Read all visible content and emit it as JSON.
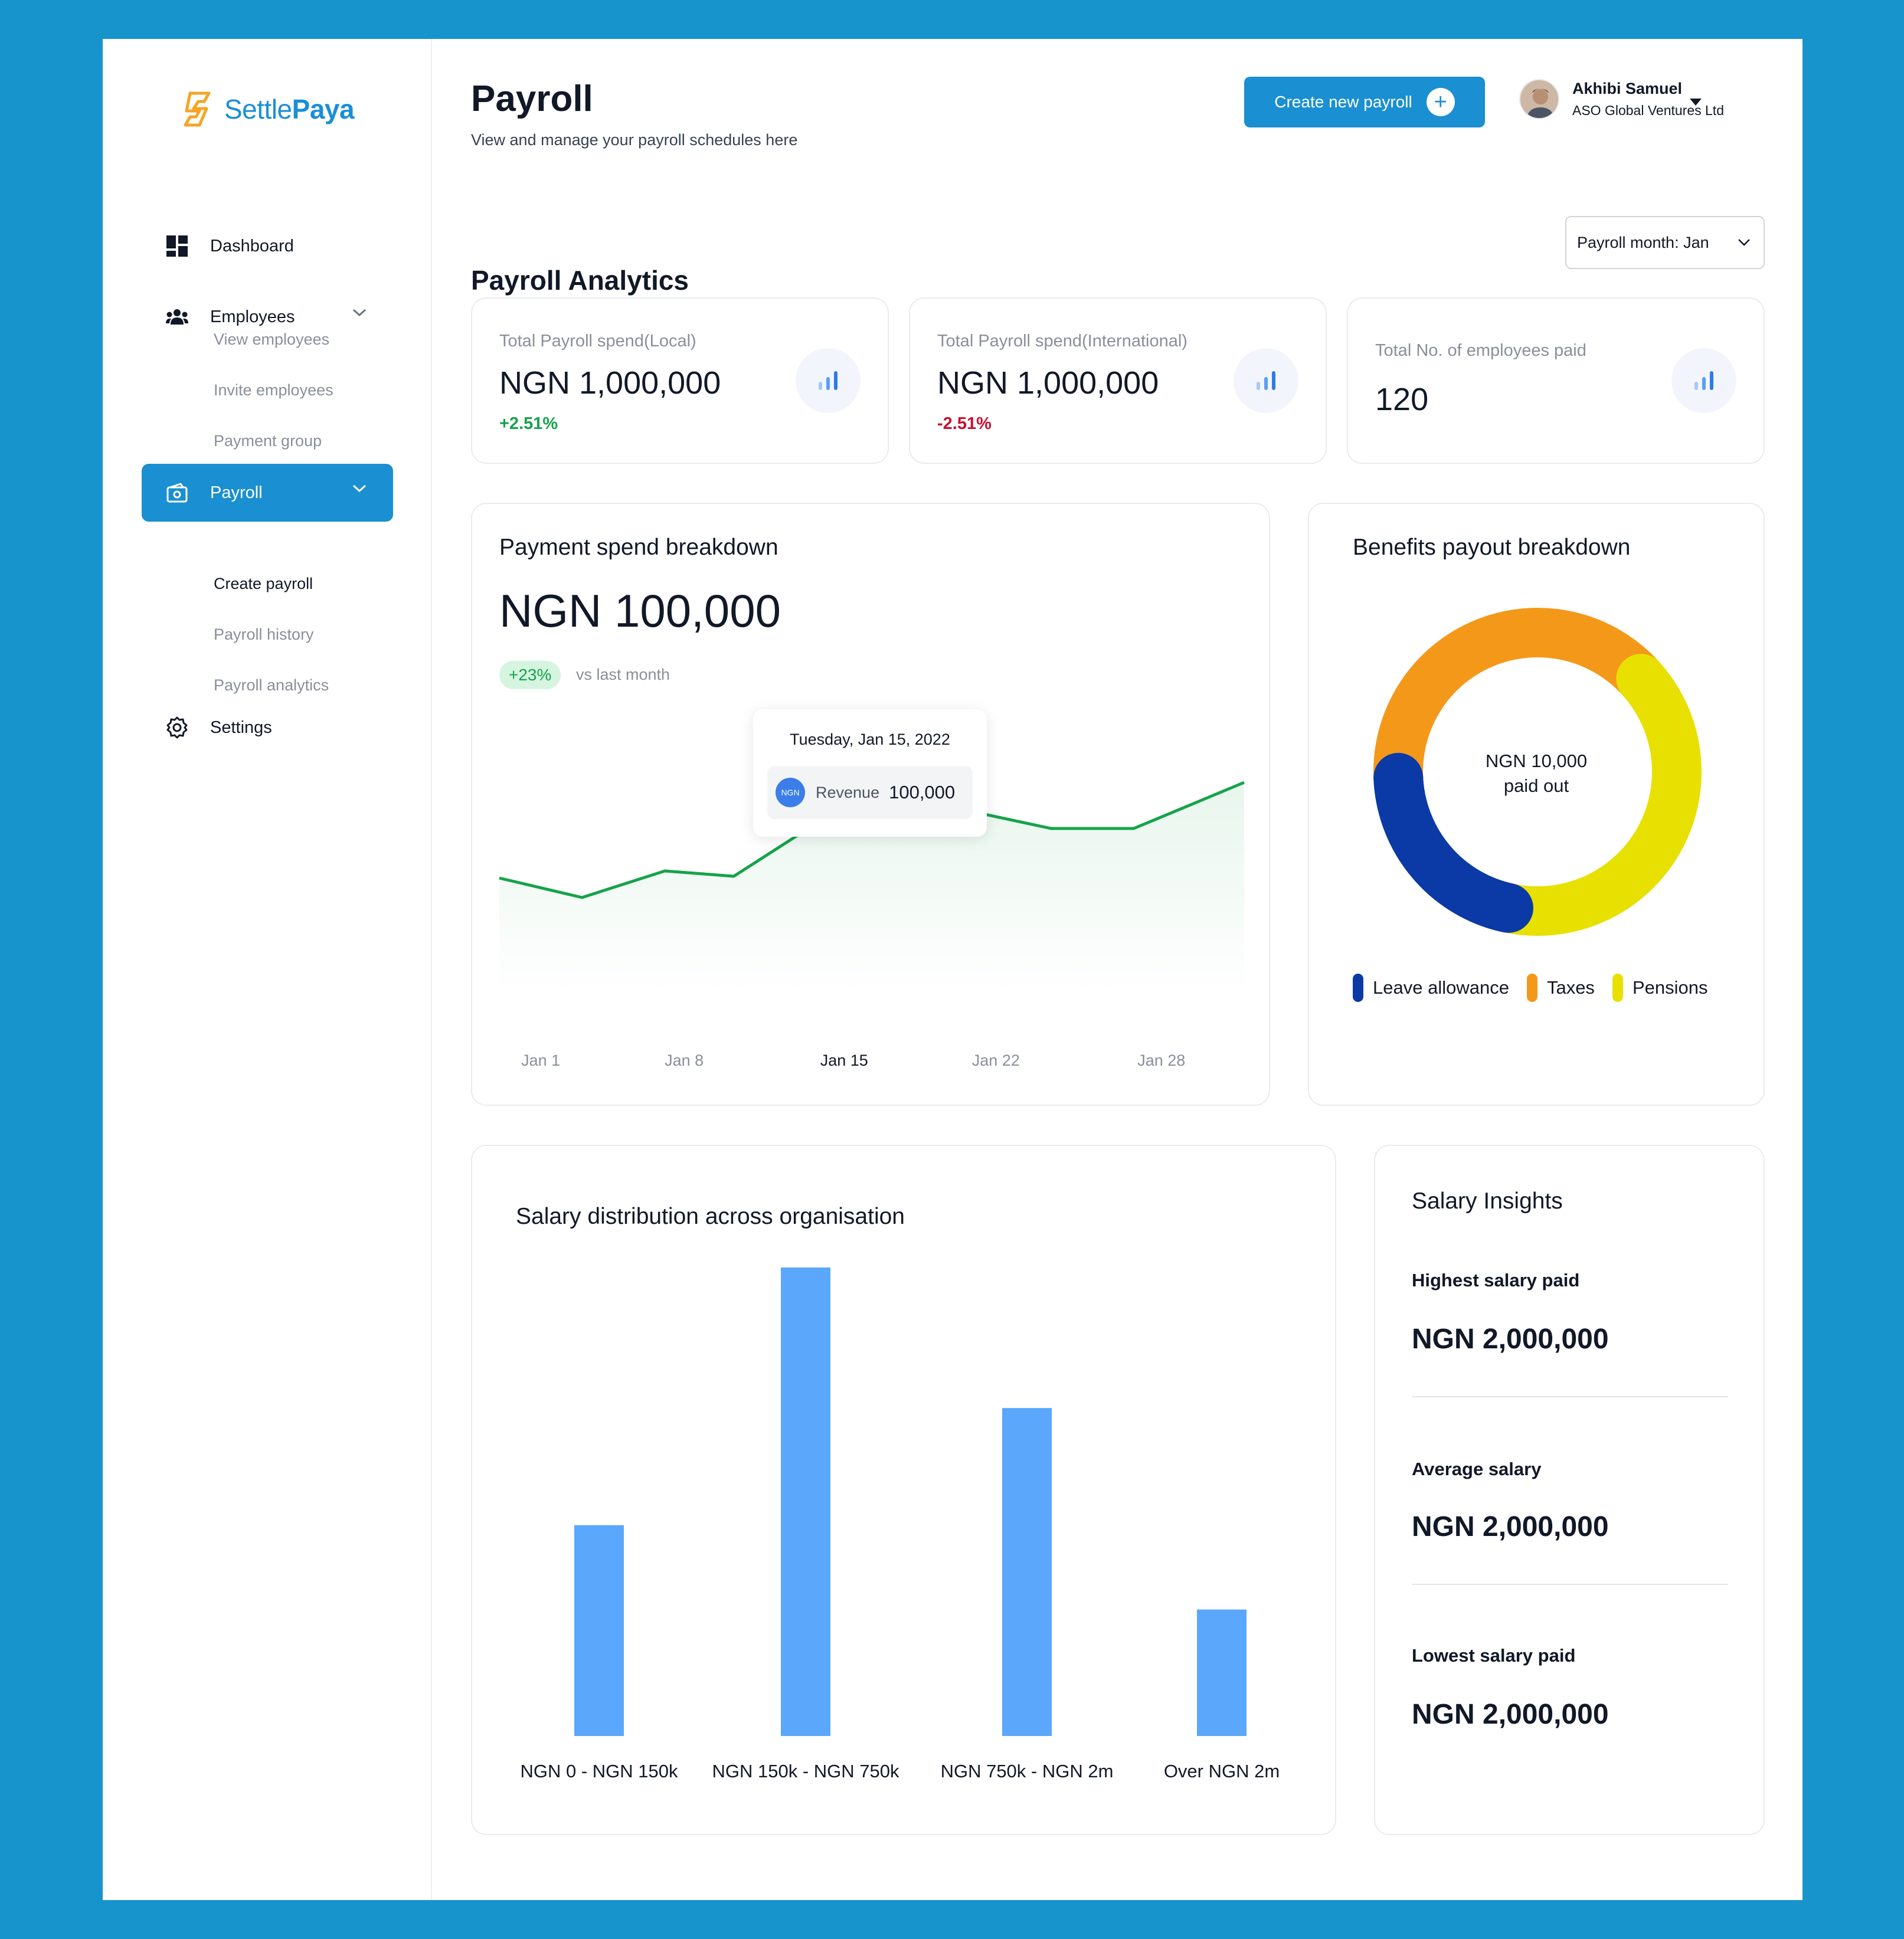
{
  "brand": {
    "name_light": "Settle",
    "name_bold": "Paya",
    "accent": "#1a8fd8",
    "logo_color": "#f5a524"
  },
  "sidebar": {
    "items": [
      {
        "label": "Dashboard",
        "icon": "dashboard-icon"
      },
      {
        "label": "Employees",
        "icon": "people-icon"
      },
      {
        "label": "Payroll",
        "icon": "wallet-icon"
      },
      {
        "label": "Settings",
        "icon": "gear-icon"
      }
    ],
    "employees_sub": [
      "View employees",
      "Invite employees",
      "Payment group"
    ],
    "payroll_sub": [
      "Create payroll",
      "Payroll history",
      "Payroll analytics"
    ]
  },
  "header": {
    "title": "Payroll",
    "subtitle": "View and manage your payroll schedules here",
    "create_button": "Create new payroll",
    "user_name": "Akhibi Samuel",
    "user_org": "ASO Global Ventures Ltd"
  },
  "analytics": {
    "title": "Payroll Analytics",
    "month_select": "Payroll month: Jan",
    "stats": [
      {
        "label": "Total Payroll spend(Local)",
        "value": "NGN 1,000,000",
        "delta": "+2.51%",
        "delta_color": "#16a34a"
      },
      {
        "label": "Total Payroll spend(International)",
        "value": "NGN 1,000,000",
        "delta": "-2.51%",
        "delta_color": "#c8102e"
      },
      {
        "label": "Total No. of employees paid",
        "value": "120",
        "delta": ""
      }
    ]
  },
  "payment_breakdown": {
    "title": "Payment spend breakdown",
    "total": "NGN 100,000",
    "change": "+23%",
    "change_note": "vs last month",
    "tooltip": {
      "date": "Tuesday, Jan 15, 2022",
      "currency_badge": "NGN",
      "label": "Revenue",
      "value": "100,000"
    }
  },
  "benefits": {
    "title": "Benefits payout breakdown",
    "center_line1": "NGN 10,000",
    "center_line2": "paid out"
  },
  "salary_distribution": {
    "title": "Salary distribution across organisation"
  },
  "insights": {
    "title": "Salary Insights",
    "items": [
      {
        "label": "Highest salary paid",
        "value": "NGN 2,000,000"
      },
      {
        "label": "Average salary",
        "value": "NGN 2,000,000"
      },
      {
        "label": "Lowest salary paid",
        "value": "NGN 2,000,000"
      }
    ]
  },
  "chart_data": [
    {
      "type": "line",
      "title": "Payment spend breakdown",
      "x_ticks": [
        "Jan 1",
        "Jan 8",
        "Jan 15",
        "Jan 22",
        "Jan 28"
      ],
      "active_tick": "Jan 15",
      "series": [
        {
          "color": "#16a34a",
          "values": [
            62,
            51,
            66,
            63,
            88,
            115,
            100,
            90,
            90,
            116
          ]
        }
      ],
      "x": [
        1,
        4,
        7,
        9.5,
        12,
        15,
        18,
        21,
        24,
        28
      ],
      "highlight": {
        "x": 15,
        "label": "Revenue",
        "value": "100,000"
      },
      "ylim": [
        0,
        140
      ],
      "grid": false
    },
    {
      "type": "pie",
      "title": "Benefits payout breakdown",
      "donut": true,
      "slices": [
        {
          "name": "Leave allowance",
          "value": 21,
          "color": "#0b3aa6"
        },
        {
          "name": "Taxes",
          "value": 39,
          "color": "#f4981a"
        },
        {
          "name": "Pensions",
          "value": 40,
          "color": "#e8e000"
        }
      ],
      "legend": "bottom"
    },
    {
      "type": "bar",
      "title": "Salary distribution across organisation",
      "categories": [
        "NGN 0 - NGN 150k",
        "NGN 150k - NGN 750k",
        "NGN 750k - NGN 2m",
        "Over NGN 2m"
      ],
      "values": [
        45,
        100,
        70,
        27
      ],
      "ylim": [
        0,
        100
      ],
      "color": "#5aa7fb",
      "grid": false
    }
  ]
}
